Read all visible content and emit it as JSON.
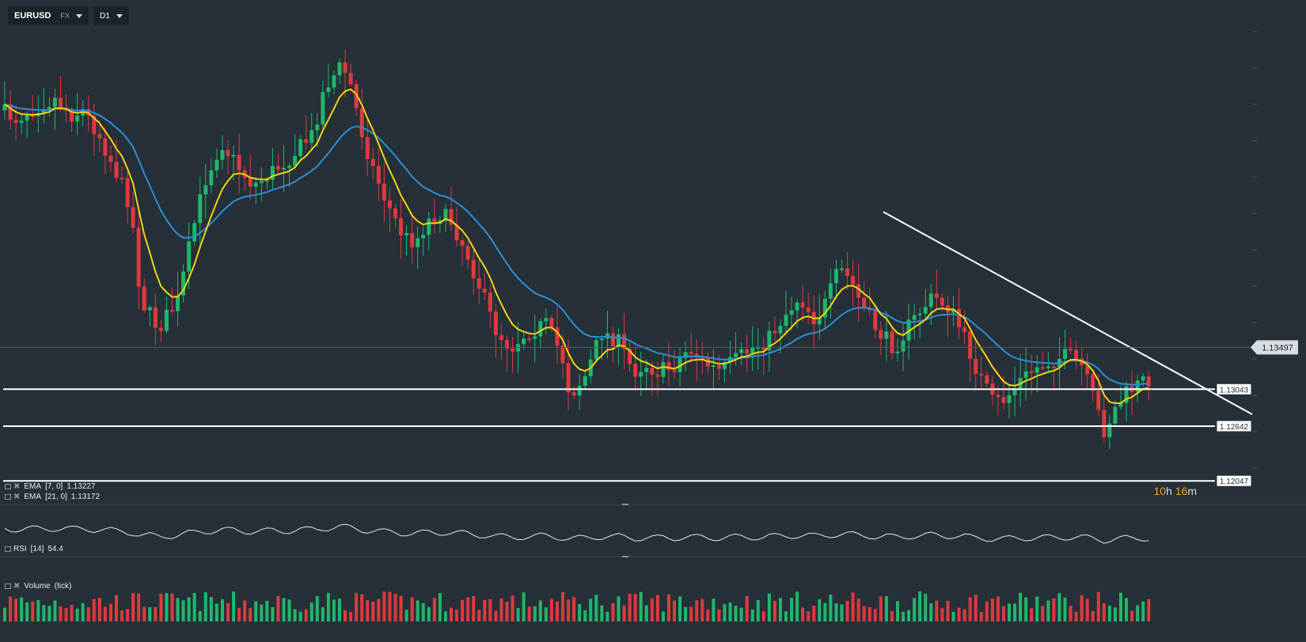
{
  "toolbar": {
    "symbol": "EURUSD",
    "market": "FX",
    "timeframe": "D1"
  },
  "price_axis": {
    "current_price": "1.13497",
    "levels": [
      "1.13043",
      "1.12642",
      "1.12047"
    ]
  },
  "countdown": {
    "hours": "10",
    "hours_unit": "h",
    "minutes": "16",
    "minutes_unit": "m"
  },
  "indicators": {
    "ema7": {
      "name": "EMA",
      "params": "[7, 0]",
      "value": "1.13227",
      "color": "#f2d20f"
    },
    "ema21": {
      "name": "EMA",
      "params": "[21, 0]",
      "value": "1.13172",
      "color": "#2b8fd6"
    },
    "rsi": {
      "name": "RSI",
      "params": "[14]",
      "value": "54.4"
    },
    "volume": {
      "name": "Volume",
      "params": "(tick)"
    }
  },
  "colors": {
    "background": "#263038",
    "bull": "#1db86b",
    "bear": "#e0393e",
    "trendline": "#ffffff",
    "price_tag_bg": "#d8dde2"
  },
  "chart_data": {
    "type": "candlestick",
    "symbol": "EURUSD",
    "timeframe": "D1",
    "ylim": [
      1.1186,
      1.171
    ],
    "support_levels": [
      1.13043,
      1.12642,
      1.12047
    ],
    "current_price": 1.13497,
    "overlays": [
      "EMA [7, 0]",
      "EMA [21, 0]"
    ],
    "sub_panels": [
      "RSI [14]",
      "Volume (tick)"
    ]
  }
}
